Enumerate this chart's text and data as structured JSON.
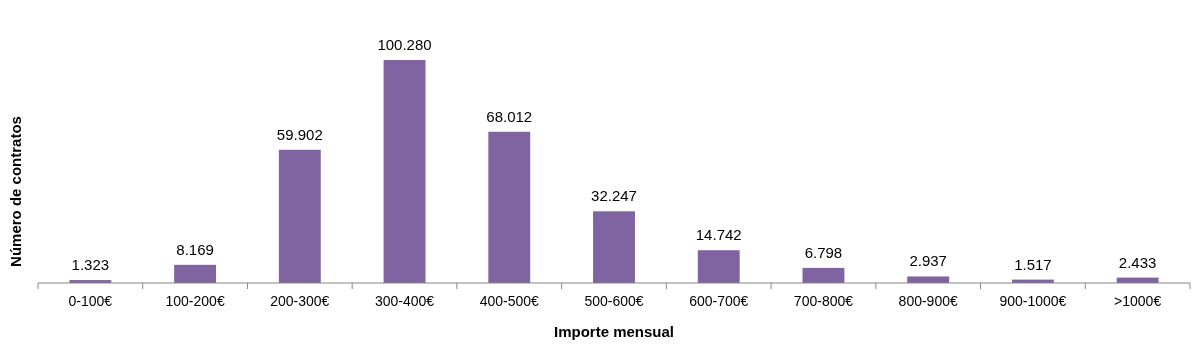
{
  "chart_data": {
    "type": "bar",
    "xlabel": "Importe mensual",
    "ylabel": "Número de contratos",
    "categories": [
      "0-100€",
      "100-200€",
      "200-300€",
      "300-400€",
      "400-500€",
      "500-600€",
      "600-700€",
      "700-800€",
      "800-900€",
      "900-1000€",
      ">1000€"
    ],
    "values": [
      1323,
      8169,
      59902,
      100280,
      68012,
      32247,
      14742,
      6798,
      2937,
      1517,
      2433
    ],
    "value_labels": [
      "1.323",
      "8.169",
      "59.902",
      "100.280",
      "68.012",
      "32.247",
      "14.742",
      "6.798",
      "2.937",
      "1.517",
      "2.433"
    ],
    "color": "#8064a2"
  }
}
